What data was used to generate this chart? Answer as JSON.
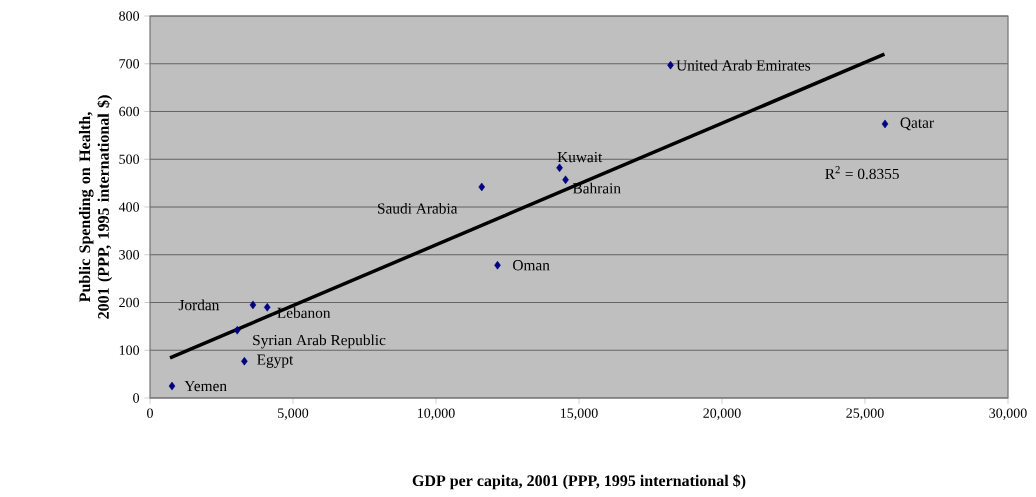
{
  "chart_data": {
    "type": "scatter",
    "xlabel": "GDP per capita, 2001 (PPP, 1995 international $)",
    "ylabel": "Public Spending on Health, 2001 (PPP, 1995 international $)",
    "xlim": [
      0,
      30000
    ],
    "xticks": [
      0,
      {
        "value": 5000,
        "label": "5,000"
      },
      {
        "value": 10000,
        "label": "10,000"
      },
      {
        "value": 15000,
        "label": "15,000"
      },
      {
        "value": 20000,
        "label": "20,000"
      },
      {
        "value": 25000,
        "label": "25,000"
      },
      {
        "value": 30000,
        "label": "30,000"
      }
    ],
    "ylim": [
      0,
      800
    ],
    "yticks": [
      0,
      100,
      200,
      300,
      400,
      500,
      600,
      700,
      800
    ],
    "grid": "y",
    "marker": "diamond",
    "series": [
      {
        "color": "#000080",
        "x": [
          770,
          3300,
          3050,
          3600,
          4100,
          11600,
          12150,
          14320,
          14530,
          18200,
          25700
        ],
        "values": [
          25,
          77,
          142,
          195,
          190,
          442,
          278,
          482,
          457,
          697,
          574
        ]
      },
      {
        "type": "line",
        "color": "#000000",
        "marker": "none",
        "line_style": "solid",
        "x": [
          700,
          25680
        ],
        "values": [
          84,
          720
        ]
      }
    ],
    "annotations": [
      {
        "text": "Yemen",
        "x": 770,
        "y": 25
      },
      {
        "text": "Egypt",
        "x": 3300,
        "y": 77
      },
      {
        "text": "Syrian Arab Republic",
        "x": 3050,
        "y": 142
      },
      {
        "text": "Jordan",
        "x": 3600,
        "y": 195
      },
      {
        "text": "Lebanon",
        "x": 4100,
        "y": 190
      },
      {
        "text": "Saudi Arabia",
        "x": 11600,
        "y": 442
      },
      {
        "text": "Oman",
        "x": 12150,
        "y": 278
      },
      {
        "text": "Kuwait",
        "x": 14320,
        "y": 482
      },
      {
        "text": "Bahrain",
        "x": 14530,
        "y": 457
      },
      {
        "text": "United Arab Emirates",
        "x": 18200,
        "y": 697
      },
      {
        "text": "Qatar",
        "x": 25700,
        "y": 574
      },
      "R$^{2}$ = 0.8355"
    ]
  }
}
